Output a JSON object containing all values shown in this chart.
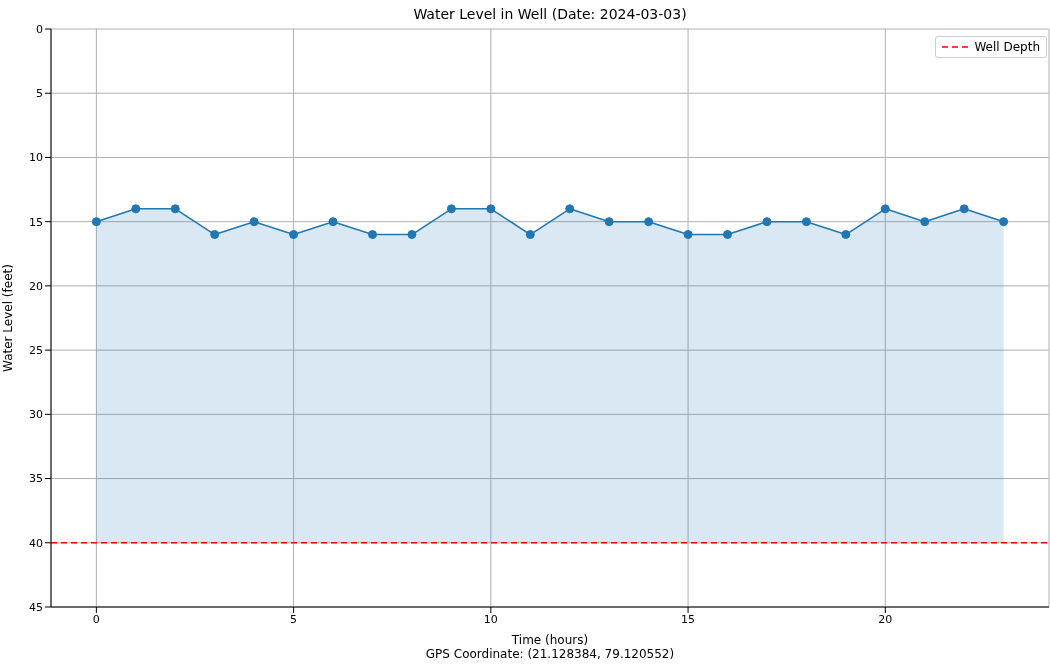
{
  "chart_data": {
    "type": "line",
    "title": "Water Level in Well (Date: 2024-03-03)",
    "xlabel": "Time (hours)",
    "ylabel": "Water Level (feet)",
    "x": [
      0,
      1,
      2,
      3,
      4,
      5,
      6,
      7,
      8,
      9,
      10,
      11,
      12,
      13,
      14,
      15,
      16,
      17,
      18,
      19,
      20,
      21,
      22,
      23
    ],
    "series": [
      {
        "color": "#1f77b4",
        "values": [
          15,
          14,
          14,
          16,
          15,
          16,
          15,
          16,
          16,
          14,
          14,
          16,
          14,
          15,
          15,
          16,
          16,
          15,
          15,
          16,
          14,
          15,
          14,
          15
        ],
        "lower": [
          15,
          14,
          14,
          16,
          15,
          16,
          15,
          16,
          16,
          14,
          14,
          16,
          14,
          15,
          15,
          16,
          16,
          15,
          15,
          16,
          14,
          15,
          14,
          15
        ],
        "upper": [
          40,
          40,
          40,
          40,
          40,
          40,
          40,
          40,
          40,
          40,
          40,
          40,
          40,
          40,
          40,
          40,
          40,
          40,
          40,
          40,
          40,
          40,
          40,
          40
        ]
      }
    ],
    "xlim": [
      -1.15,
      24.15
    ],
    "xticks": [
      0,
      5,
      10,
      15,
      20
    ],
    "ylim": [
      45,
      0
    ],
    "yticks": [
      0,
      5,
      10,
      15,
      20,
      25,
      30,
      35,
      40,
      45
    ],
    "ref_lines": [
      {
        "axis": "y",
        "value": 40,
        "label": "Well Depth",
        "color": "#ff0000",
        "line_style": "dashed"
      }
    ],
    "grid": true,
    "legend": "top right",
    "marker": "circle",
    "line_style": "solid",
    "annotations": [
      "GPS Coordinate: (21.128384, 79.120552)"
    ]
  }
}
